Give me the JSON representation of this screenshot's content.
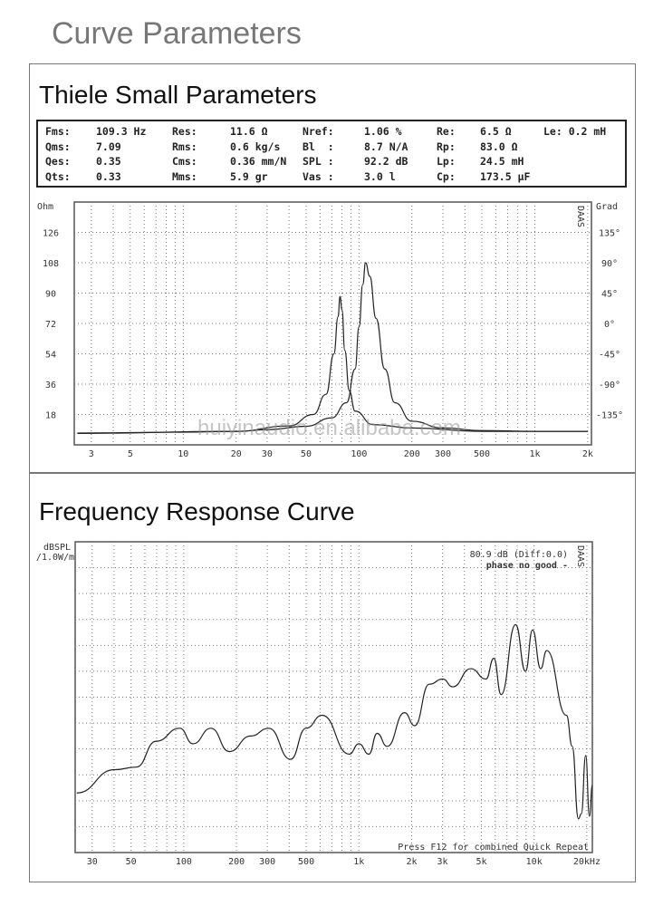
{
  "page_title": "Curve Parameters",
  "ts_panel": {
    "title": "Thiele Small Parameters",
    "params": [
      [
        "Fms:",
        "109.3 Hz",
        "Res:",
        "11.6 Ω",
        "Nref:",
        "1.06 %",
        "Re:",
        "6.5 Ω",
        "Le: 0.2 mH"
      ],
      [
        "Qms:",
        "7.09",
        "Rms:",
        "0.6 kg/s",
        "Bl  :",
        "8.7 N/A",
        "Rp:",
        "83.0 Ω",
        ""
      ],
      [
        "Qes:",
        "0.35",
        "Cms:",
        "0.36 mm/N",
        "SPL :",
        "92.2 dB",
        "Lp:",
        "24.5 mH",
        ""
      ],
      [
        "Qts:",
        "0.33",
        "Mms:",
        "5.9 gr",
        "Vas :",
        "3.0 l",
        "Cp:",
        "173.5 µF",
        ""
      ]
    ],
    "watermark": "huiyinaudio.en.alibaba.com",
    "logo": "DAAS"
  },
  "fr_panel": {
    "title": "Frequency Response Curve",
    "logo": "DAAS"
  },
  "chart_data": [
    {
      "type": "line",
      "ylabel": "Ohm",
      "y2label": "Grad",
      "xscale": "log",
      "xlim": [
        2.4,
        2100
      ],
      "ylim": [
        0,
        144
      ],
      "y2lim": [
        -180,
        180
      ],
      "grid": true,
      "x_ticks": [
        3,
        5,
        10,
        20,
        30,
        50,
        100,
        200,
        300,
        500,
        1000,
        2000
      ],
      "x_tick_labels": [
        "3",
        "5",
        "10",
        "20",
        "30",
        "50",
        "100",
        "200",
        "300",
        "500",
        "1k",
        "2k"
      ],
      "y_ticks": [
        18,
        36,
        54,
        72,
        90,
        108,
        126
      ],
      "y_tick_labels": [
        "18",
        "36",
        "54",
        "72",
        "90",
        "108",
        "126"
      ],
      "y2_ticks": [
        -135,
        -90,
        -45,
        0,
        45,
        90,
        135
      ],
      "y2_tick_labels": [
        "-135°",
        "-90°",
        "-45°",
        "0°",
        "45°",
        "90°",
        "135°"
      ],
      "series": [
        {
          "axis": "left",
          "x": [
            2.5,
            10,
            20,
            30,
            50,
            70,
            85,
            95,
            100,
            105,
            109,
            115,
            125,
            140,
            160,
            200,
            300,
            500,
            1000,
            2000
          ],
          "y": [
            7,
            7.5,
            8,
            9,
            11,
            16,
            25,
            45,
            70,
            95,
            108,
            100,
            75,
            45,
            25,
            14,
            10,
            8.5,
            8,
            8
          ]
        },
        {
          "axis": "right",
          "x": [
            2.5,
            20,
            40,
            55,
            65,
            72,
            76,
            78,
            80,
            83,
            88,
            95,
            120,
            200,
            500,
            2000
          ],
          "y": [
            -163,
            -160,
            -152,
            -135,
            -105,
            -45,
            10,
            40,
            20,
            -40,
            -100,
            -130,
            -150,
            -155,
            -160,
            -160
          ]
        }
      ]
    },
    {
      "type": "line",
      "ylabel": "dBSPL\n/1.0W/m",
      "xscale": "log",
      "xlim": [
        24,
        21500
      ],
      "ylim": [
        0,
        12
      ],
      "grid": true,
      "x_ticks": [
        30,
        50,
        100,
        200,
        300,
        500,
        1000,
        2000,
        3000,
        5000,
        10000,
        20000
      ],
      "x_tick_labels": [
        "30",
        "50",
        "100",
        "200",
        "300",
        "500",
        "1k",
        "2k",
        "3k",
        "5k",
        "10k",
        "20kHz"
      ],
      "annotations": [
        "80.9 dB (Diff:0.0)",
        "phase no good -",
        "Press F12 for combined Quick Repeat"
      ],
      "series": [
        {
          "x": [
            24.5,
            40.3,
            53.6,
            69.6,
            94.8,
            113,
            143,
            182,
            241,
            306,
            407,
            499,
            617,
            880,
            1000,
            1140,
            1270,
            1450,
            1820,
            2080,
            2520,
            3010,
            3430,
            4350,
            5310,
            5890,
            6480,
            7840,
            8930,
            9800,
            10900,
            11800,
            15300,
            16500,
            17900,
            18600,
            19700,
            20700,
            21500
          ],
          "y": [
            2.3,
            3.2,
            3.3,
            4.3,
            4.8,
            4.2,
            4.8,
            3.9,
            4.5,
            4.8,
            3.6,
            4.8,
            5.3,
            3.8,
            4.2,
            3.8,
            4.6,
            4.1,
            5.4,
            4.9,
            6.5,
            6.7,
            6.4,
            7.1,
            6.7,
            7.5,
            6.1,
            8.8,
            7.0,
            8.6,
            7.1,
            7.8,
            5.3,
            4.1,
            1.3,
            1.5,
            3.75,
            1.4,
            2.6
          ]
        }
      ]
    }
  ]
}
